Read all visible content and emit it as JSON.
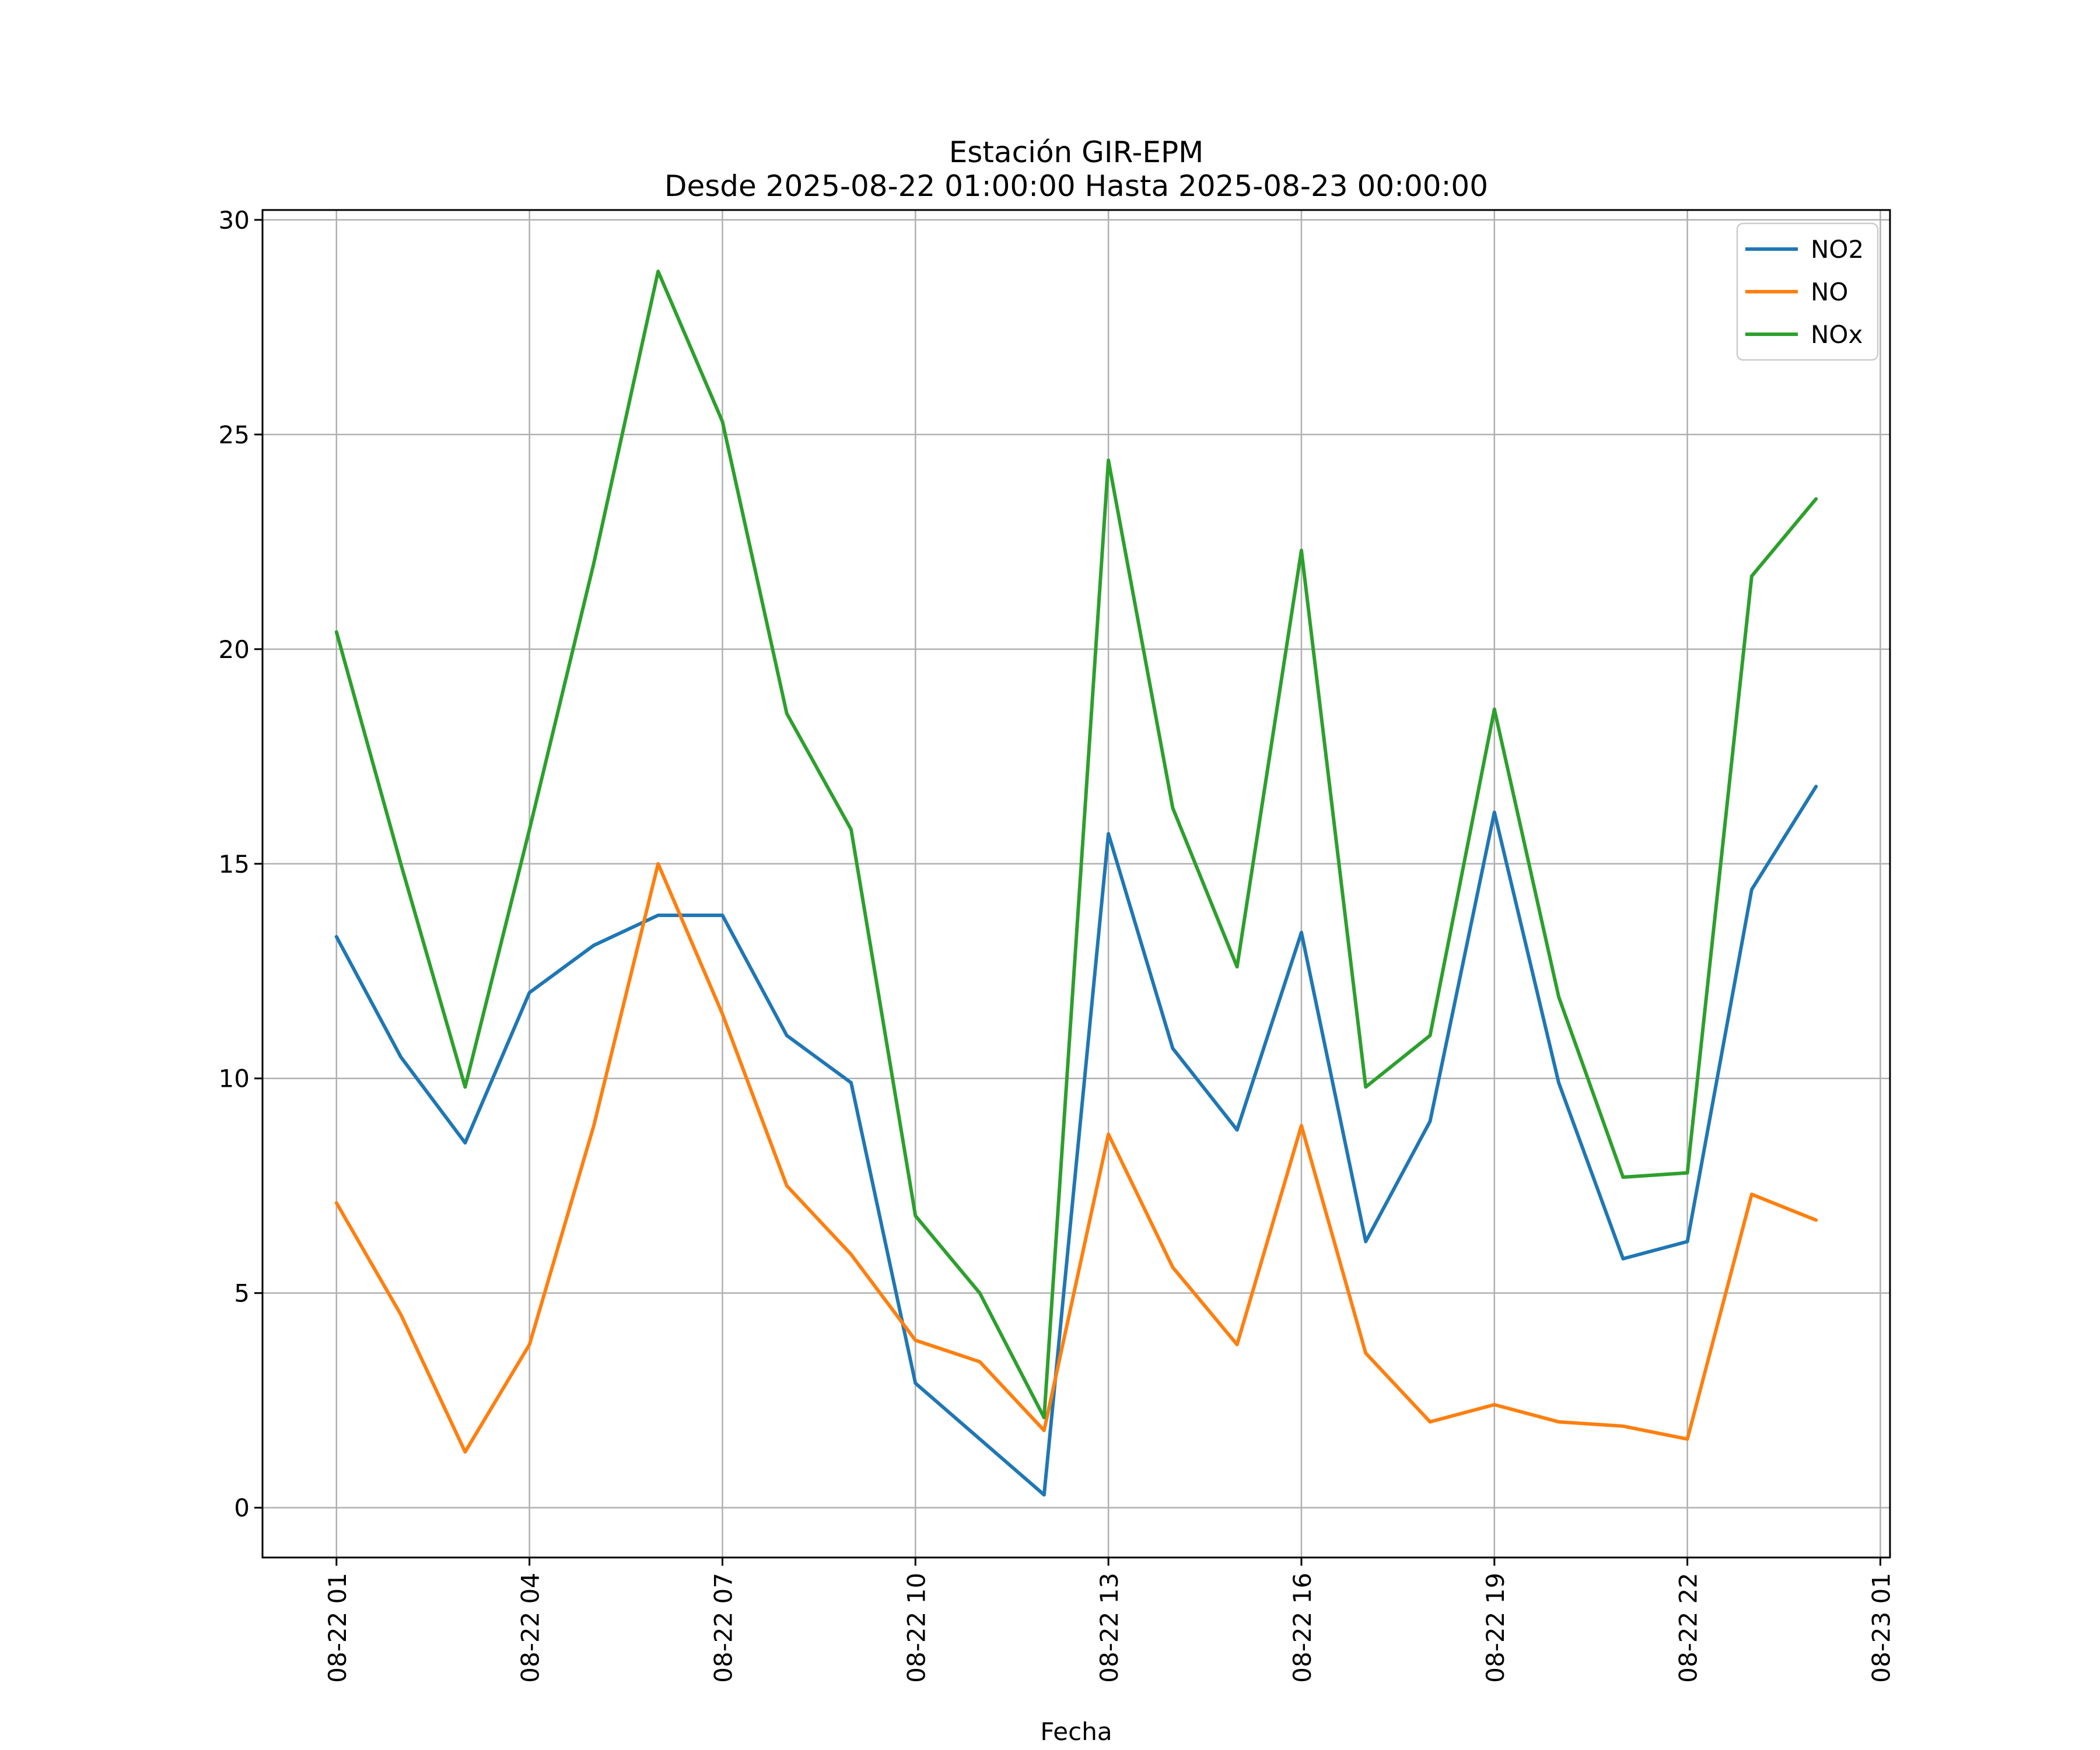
{
  "figure": {
    "background_color": "#ffffff",
    "text_color": "#000000"
  },
  "chart_data": {
    "type": "line",
    "title": "Estación GIR-EPM",
    "subtitle": "Desde 2025-08-22 01:00:00 Hasta 2025-08-23 00:00:00",
    "xlabel": "Fecha",
    "ylabel": "",
    "x_hours": [
      1,
      2,
      3,
      4,
      5,
      6,
      7,
      8,
      9,
      10,
      11,
      12,
      13,
      14,
      15,
      16,
      17,
      18,
      19,
      20,
      21,
      22,
      23,
      24
    ],
    "series": [
      {
        "name": "NO2",
        "color": "#1f77b4",
        "values": [
          13.3,
          10.5,
          8.5,
          12.0,
          13.1,
          13.8,
          13.8,
          11.0,
          9.9,
          2.9,
          1.6,
          0.3,
          15.7,
          10.7,
          8.8,
          13.4,
          6.2,
          9.0,
          16.2,
          9.9,
          5.8,
          6.2,
          14.4,
          16.8
        ]
      },
      {
        "name": "NO",
        "color": "#ff7f0e",
        "values": [
          7.1,
          4.5,
          1.3,
          3.8,
          8.9,
          15.0,
          11.5,
          7.5,
          5.9,
          3.9,
          3.4,
          1.8,
          8.7,
          5.6,
          3.8,
          8.9,
          3.6,
          2.0,
          2.4,
          2.0,
          1.9,
          1.6,
          7.3,
          6.7
        ]
      },
      {
        "name": "NOx",
        "color": "#2ca02c",
        "values": [
          20.4,
          15.0,
          9.8,
          15.8,
          22.0,
          28.8,
          25.3,
          18.5,
          15.8,
          6.8,
          5.0,
          2.1,
          24.4,
          16.3,
          12.6,
          22.3,
          9.8,
          11.0,
          18.6,
          11.9,
          7.7,
          7.8,
          21.7,
          23.5
        ]
      }
    ],
    "x_ticks": {
      "hours": [
        1,
        4,
        7,
        10,
        13,
        16,
        19,
        22,
        25
      ],
      "labels": [
        "08-22 01",
        "08-22 04",
        "08-22 07",
        "08-22 10",
        "08-22 13",
        "08-22 16",
        "08-22 19",
        "08-22 22",
        "08-23 01"
      ],
      "rotation_deg": 90
    },
    "y_ticks": [
      0,
      5,
      10,
      15,
      20,
      25,
      30
    ],
    "xlim": [
      -0.15,
      25.15
    ],
    "ylim": [
      -1.16,
      30.23
    ],
    "grid": true,
    "grid_color": "#b0b0b0",
    "legend": {
      "position": "upper right",
      "entries": [
        "NO2",
        "NO",
        "NOx"
      ]
    }
  }
}
